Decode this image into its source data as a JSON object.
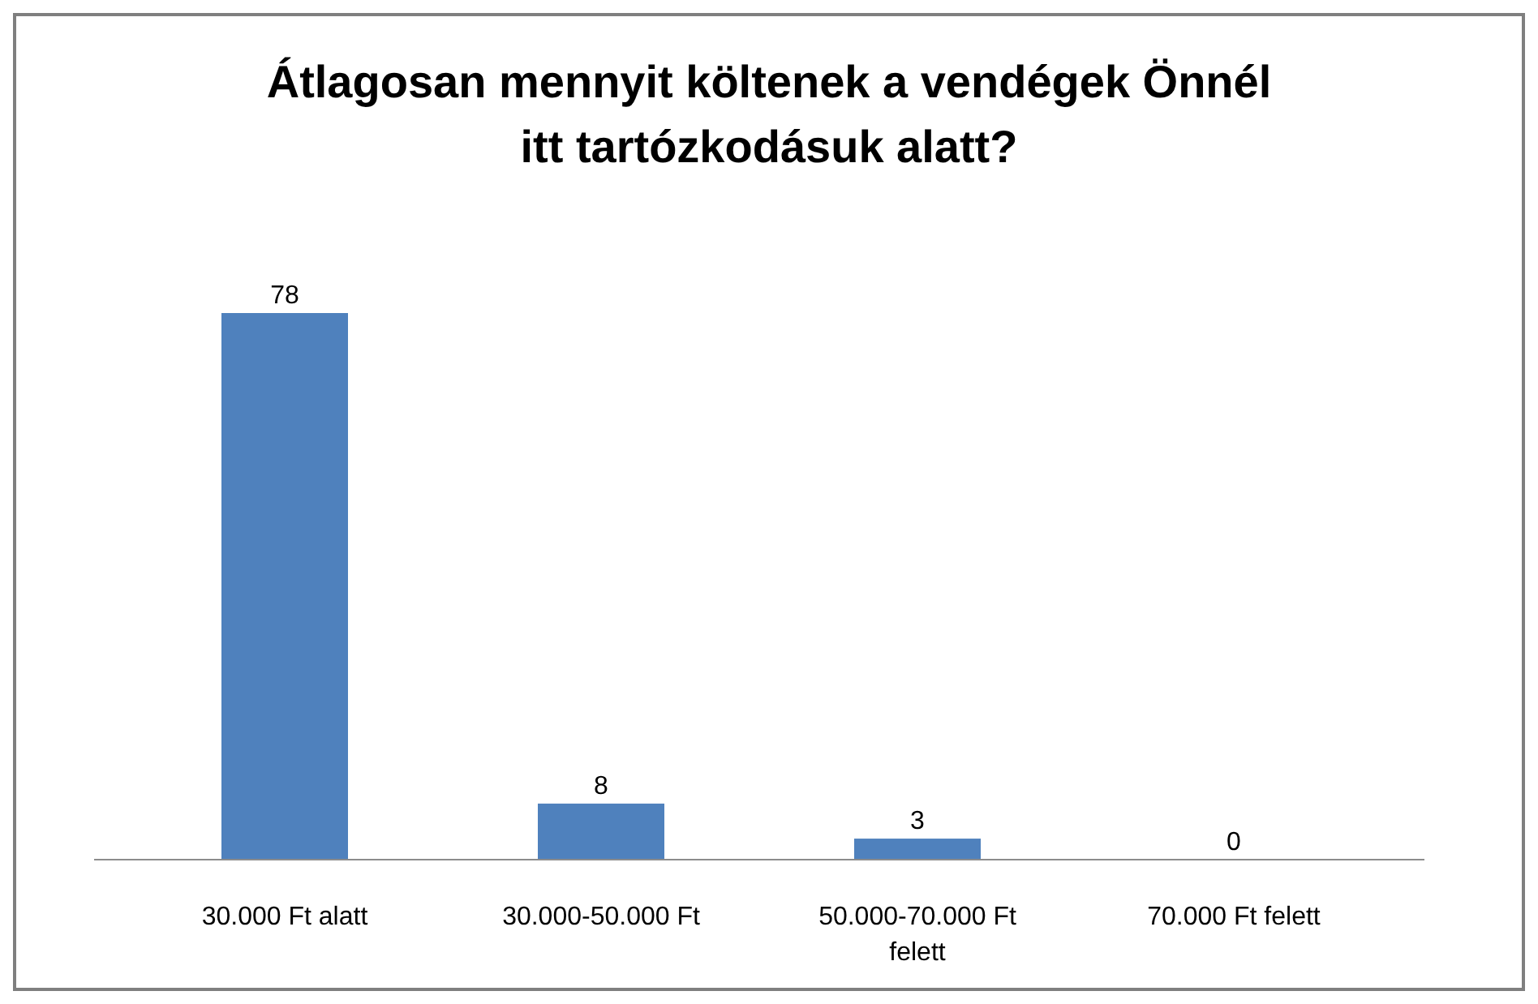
{
  "chart_data": {
    "type": "bar",
    "title": "Átlagosan mennyit költenek a vendégek Önnél itt tartózkodásuk alatt?",
    "categories": [
      "30.000 Ft alatt",
      "30.000-50.000 Ft",
      "50.000-70.000 Ft felett",
      "70.000 Ft felett"
    ],
    "values": [
      78,
      8,
      3,
      0
    ],
    "color": "#4f81bd",
    "data_labels": true,
    "tick_labels": "x"
  }
}
